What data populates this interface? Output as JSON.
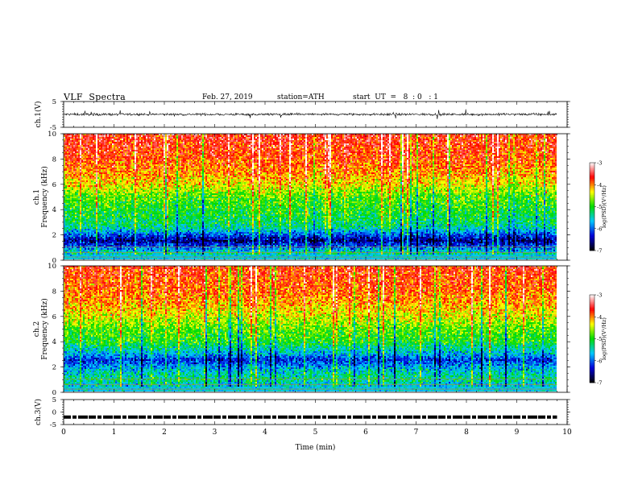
{
  "header": {
    "title": "VLF  Spectra",
    "date": "Feb. 27, 2019",
    "station": "station=ATH",
    "start": "start  UT  =   8  : 0   : 1"
  },
  "chart_data": [
    {
      "type": "line",
      "panel": "ch1-waveform",
      "ylabel": "ch.1(V)",
      "ylim": [
        -5,
        5
      ],
      "yticks": [
        "5",
        "-5"
      ],
      "xlim": [
        0,
        10
      ],
      "data_xrange": [
        0,
        9.8
      ],
      "trace": "noisy black waveform centred near 0 V, amplitude about ±1 V with spikes reaching ±2 V"
    },
    {
      "type": "heatmap",
      "panel": "ch1-spectrogram",
      "ylabel": "ch.1\nFrequency (kHz)",
      "ylim": [
        0,
        10
      ],
      "yticks": [
        "0",
        "2",
        "4",
        "6",
        "8",
        "10"
      ],
      "xlim": [
        0,
        10
      ],
      "data_xrange": [
        0,
        9.8
      ],
      "colorbar": {
        "label": "log(PSD)(V²/Hz)",
        "range": [
          -7,
          -3
        ],
        "ticks": [
          "-3",
          "-4",
          "-5",
          "-6",
          "-7"
        ],
        "colors": [
          "#000000",
          "#0000d8",
          "#00c8ff",
          "#00dc00",
          "#ffff00",
          "#ff0000",
          "#ffffff"
        ]
      },
      "level_profile_kHz": [
        [
          0.0,
          -5.2
        ],
        [
          0.5,
          -5.4
        ],
        [
          1.0,
          -6.0
        ],
        [
          1.5,
          -6.6
        ],
        [
          2.0,
          -6.0
        ],
        [
          2.5,
          -5.4
        ],
        [
          3.0,
          -5.2
        ],
        [
          4.0,
          -5.0
        ],
        [
          5.0,
          -4.8
        ],
        [
          6.0,
          -4.3
        ],
        [
          7.0,
          -4.0
        ],
        [
          8.0,
          -3.8
        ],
        [
          9.0,
          -3.7
        ],
        [
          10.0,
          -3.6
        ]
      ]
    },
    {
      "type": "heatmap",
      "panel": "ch2-spectrogram",
      "ylabel": "ch.2\nFrequency (kHz)",
      "ylim": [
        0,
        10
      ],
      "yticks": [
        "0",
        "2",
        "4",
        "6",
        "8",
        "10"
      ],
      "xlim": [
        0,
        10
      ],
      "data_xrange": [
        0,
        9.8
      ],
      "colorbar": {
        "label": "log(PSD)(V²/Hz)",
        "range": [
          -7,
          -3
        ],
        "ticks": [
          "-3",
          "-4",
          "-5",
          "-6",
          "-7"
        ],
        "colors": [
          "#000000",
          "#0000d8",
          "#00c8ff",
          "#00dc00",
          "#ffff00",
          "#ff0000",
          "#ffffff"
        ]
      },
      "level_profile_kHz": [
        [
          0.0,
          -5.3
        ],
        [
          0.5,
          -5.6
        ],
        [
          1.0,
          -5.3
        ],
        [
          1.5,
          -5.5
        ],
        [
          2.0,
          -5.8
        ],
        [
          2.5,
          -6.2
        ],
        [
          3.0,
          -5.7
        ],
        [
          4.0,
          -5.0
        ],
        [
          5.0,
          -4.8
        ],
        [
          6.0,
          -4.4
        ],
        [
          7.0,
          -4.1
        ],
        [
          8.0,
          -3.9
        ],
        [
          9.0,
          -3.8
        ],
        [
          10.0,
          -3.7
        ]
      ]
    },
    {
      "type": "line",
      "panel": "ch3-waveform",
      "ylabel": "ch.3(V)",
      "ylim": [
        -5,
        5
      ],
      "yticks": [
        "5",
        "0",
        "-5"
      ],
      "xlim": [
        0,
        10
      ],
      "data_xrange": [
        0,
        9.8
      ],
      "trace": "thick black dashed trace at about -2 V"
    }
  ],
  "xaxis": {
    "label": "Time  (min)",
    "ticks": [
      "0",
      "1",
      "2",
      "3",
      "4",
      "5",
      "6",
      "7",
      "8",
      "9",
      "10"
    ]
  }
}
